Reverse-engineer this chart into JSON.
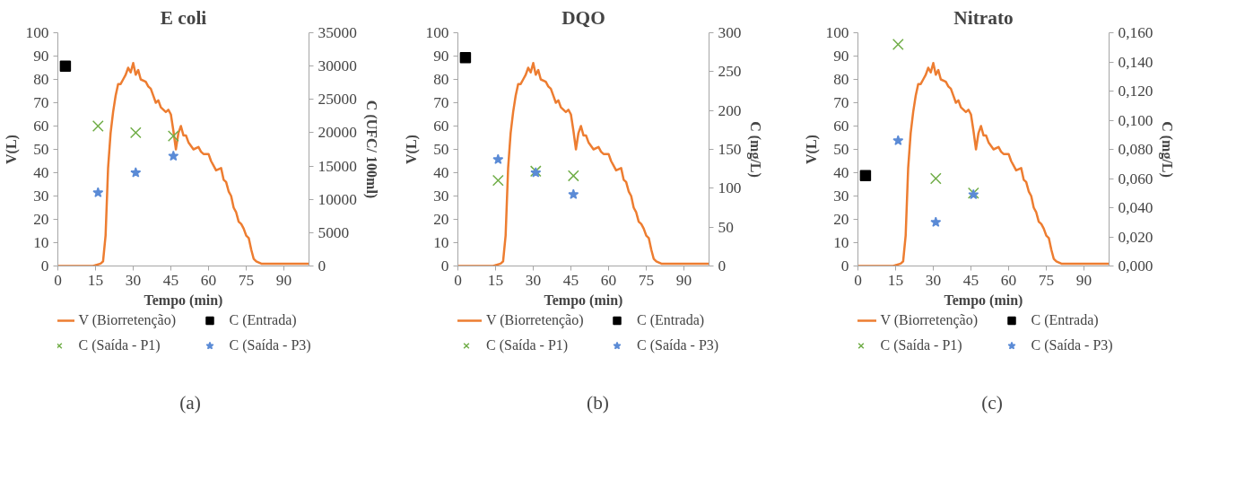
{
  "chart_data": [
    {
      "type": "line",
      "title": "E coli",
      "xlabel": "Tempo (min)",
      "ylabel": "V(L)",
      "y2label": "C (UFC/ 100ml)",
      "xlim": [
        0,
        100
      ],
      "xticks": [
        0,
        15,
        30,
        45,
        60,
        75,
        90
      ],
      "ylim": [
        0,
        100
      ],
      "yticks": [
        0,
        10,
        20,
        30,
        40,
        50,
        60,
        70,
        80,
        90,
        100
      ],
      "y2lim": [
        0,
        35000
      ],
      "y2ticks": [
        0,
        5000,
        10000,
        15000,
        20000,
        25000,
        30000,
        35000
      ],
      "legend": "bottom",
      "annotations": [
        "(a)"
      ],
      "series": [
        {
          "name": "V (Biorretenção)",
          "color": "#ed7d31",
          "marker": "none",
          "x": [
            0,
            13,
            14,
            17,
            18,
            19,
            20,
            21,
            22,
            23,
            24,
            25,
            26,
            27,
            28,
            29,
            30,
            31,
            32,
            33,
            35,
            36,
            37,
            38,
            39,
            40,
            41,
            43,
            44,
            45,
            46,
            47,
            48,
            49,
            50,
            51,
            52,
            54,
            56,
            57,
            58,
            60,
            61,
            62,
            63,
            65,
            66,
            67,
            68,
            69,
            70,
            71,
            72,
            73,
            74,
            75,
            76,
            77,
            78,
            79,
            81,
            90,
            95,
            100
          ],
          "values": [
            0,
            0,
            0,
            1,
            2,
            13,
            42,
            57,
            66,
            73,
            78,
            78,
            80,
            82,
            85,
            83,
            87,
            82,
            84,
            80,
            79,
            77,
            76,
            73,
            70,
            71,
            68,
            66,
            67,
            65,
            58,
            50,
            57,
            60,
            56,
            56,
            53,
            50,
            51,
            49,
            48,
            48,
            45,
            43,
            41,
            42,
            37,
            36,
            32,
            30,
            25,
            23,
            19,
            18,
            16,
            13,
            12,
            7,
            3,
            2,
            1,
            1,
            1,
            1
          ]
        },
        {
          "name": "C (Entrada)",
          "type": "scatter",
          "axis": "y2",
          "color": "#000000",
          "marker": "square",
          "x": [
            3
          ],
          "values": [
            30000
          ]
        },
        {
          "name": "C (Saída - P1)",
          "type": "scatter",
          "axis": "y2",
          "color": "#70ad47",
          "marker": "cross",
          "x": [
            16,
            31,
            46
          ],
          "values": [
            21000,
            20000,
            19500
          ]
        },
        {
          "name": "C (Saída - P3)",
          "type": "scatter",
          "axis": "y2",
          "color": "#5b8bd6",
          "marker": "star",
          "x": [
            16,
            31,
            46
          ],
          "values": [
            11000,
            14000,
            16500
          ]
        }
      ]
    },
    {
      "type": "line",
      "title": "DQO",
      "xlabel": "Tempo (min)",
      "ylabel": "V(L)",
      "y2label": "C (mg/L)",
      "xlim": [
        0,
        100
      ],
      "xticks": [
        0,
        15,
        30,
        45,
        60,
        75,
        90
      ],
      "ylim": [
        0,
        100
      ],
      "yticks": [
        0,
        10,
        20,
        30,
        40,
        50,
        60,
        70,
        80,
        90,
        100
      ],
      "y2lim": [
        0,
        300
      ],
      "y2ticks": [
        0,
        50,
        100,
        150,
        200,
        250,
        300
      ],
      "legend": "bottom",
      "annotations": [
        "(b)"
      ],
      "series": [
        {
          "name": "V (Biorretenção)",
          "color": "#ed7d31",
          "marker": "none",
          "x": [
            0,
            13,
            14,
            17,
            18,
            19,
            20,
            21,
            22,
            23,
            24,
            25,
            26,
            27,
            28,
            29,
            30,
            31,
            32,
            33,
            35,
            36,
            37,
            38,
            39,
            40,
            41,
            43,
            44,
            45,
            46,
            47,
            48,
            49,
            50,
            51,
            52,
            54,
            56,
            57,
            58,
            60,
            61,
            62,
            63,
            65,
            66,
            67,
            68,
            69,
            70,
            71,
            72,
            73,
            74,
            75,
            76,
            77,
            78,
            79,
            81,
            90,
            95,
            100
          ],
          "values": [
            0,
            0,
            0,
            1,
            2,
            13,
            42,
            57,
            66,
            73,
            78,
            78,
            80,
            82,
            85,
            83,
            87,
            82,
            84,
            80,
            79,
            77,
            76,
            73,
            70,
            71,
            68,
            66,
            67,
            65,
            58,
            50,
            57,
            60,
            56,
            56,
            53,
            50,
            51,
            49,
            48,
            48,
            45,
            43,
            41,
            42,
            37,
            36,
            32,
            30,
            25,
            23,
            19,
            18,
            16,
            13,
            12,
            7,
            3,
            2,
            1,
            1,
            1,
            1
          ]
        },
        {
          "name": "C (Entrada)",
          "type": "scatter",
          "axis": "y2",
          "color": "#000000",
          "marker": "square",
          "x": [
            3
          ],
          "values": [
            268
          ]
        },
        {
          "name": "C (Saída - P1)",
          "type": "scatter",
          "axis": "y2",
          "color": "#70ad47",
          "marker": "cross",
          "x": [
            16,
            31,
            46
          ],
          "values": [
            110,
            122,
            116
          ]
        },
        {
          "name": "C (Saída - P3)",
          "type": "scatter",
          "axis": "y2",
          "color": "#5b8bd6",
          "marker": "star",
          "x": [
            16,
            31,
            46
          ],
          "values": [
            137,
            120,
            92
          ]
        }
      ]
    },
    {
      "type": "line",
      "title": "Nitrato",
      "xlabel": "Tempo (min)",
      "ylabel": "V(L)",
      "y2label": "C (mg/L)",
      "xlim": [
        0,
        100
      ],
      "xticks": [
        0,
        15,
        30,
        45,
        60,
        75,
        90
      ],
      "ylim": [
        0,
        100
      ],
      "yticks": [
        0,
        10,
        20,
        30,
        40,
        50,
        60,
        70,
        80,
        90,
        100
      ],
      "y2lim": [
        0,
        0.16
      ],
      "y2ticks": [
        {
          "value": 0,
          "label": "0,000"
        },
        {
          "value": 0.02,
          "label": "0,020"
        },
        {
          "value": 0.04,
          "label": "0,040"
        },
        {
          "value": 0.06,
          "label": "0,060"
        },
        {
          "value": 0.08,
          "label": "0,080"
        },
        {
          "value": 0.1,
          "label": "0,100"
        },
        {
          "value": 0.12,
          "label": "0,120"
        },
        {
          "value": 0.14,
          "label": "0,140"
        },
        {
          "value": 0.16,
          "label": "0,160"
        }
      ],
      "legend": "bottom",
      "annotations": [
        "(c)"
      ],
      "series": [
        {
          "name": "V (Biorretenção)",
          "color": "#ed7d31",
          "marker": "none",
          "x": [
            0,
            13,
            14,
            17,
            18,
            19,
            20,
            21,
            22,
            23,
            24,
            25,
            26,
            27,
            28,
            29,
            30,
            31,
            32,
            33,
            35,
            36,
            37,
            38,
            39,
            40,
            41,
            43,
            44,
            45,
            46,
            47,
            48,
            49,
            50,
            51,
            52,
            54,
            56,
            57,
            58,
            60,
            61,
            62,
            63,
            65,
            66,
            67,
            68,
            69,
            70,
            71,
            72,
            73,
            74,
            75,
            76,
            77,
            78,
            79,
            81,
            90,
            95,
            100
          ],
          "values": [
            0,
            0,
            0,
            1,
            2,
            13,
            42,
            57,
            66,
            73,
            78,
            78,
            80,
            82,
            85,
            83,
            87,
            82,
            84,
            80,
            79,
            77,
            76,
            73,
            70,
            71,
            68,
            66,
            67,
            65,
            58,
            50,
            57,
            60,
            56,
            56,
            53,
            50,
            51,
            49,
            48,
            48,
            45,
            43,
            41,
            42,
            37,
            36,
            32,
            30,
            25,
            23,
            19,
            18,
            16,
            13,
            12,
            7,
            3,
            2,
            1,
            1,
            1,
            1
          ]
        },
        {
          "name": "C (Entrada)",
          "type": "scatter",
          "axis": "y2",
          "color": "#000000",
          "marker": "square",
          "x": [
            3
          ],
          "values": [
            0.062
          ]
        },
        {
          "name": "C (Saída - P1)",
          "type": "scatter",
          "axis": "y2",
          "color": "#70ad47",
          "marker": "cross",
          "x": [
            16,
            31,
            46
          ],
          "values": [
            0.152,
            0.06,
            0.05
          ]
        },
        {
          "name": "C (Saída - P3)",
          "type": "scatter",
          "axis": "y2",
          "color": "#5b8bd6",
          "marker": "star",
          "x": [
            16,
            31,
            46
          ],
          "values": [
            0.086,
            0.03,
            0.049
          ]
        }
      ]
    }
  ]
}
